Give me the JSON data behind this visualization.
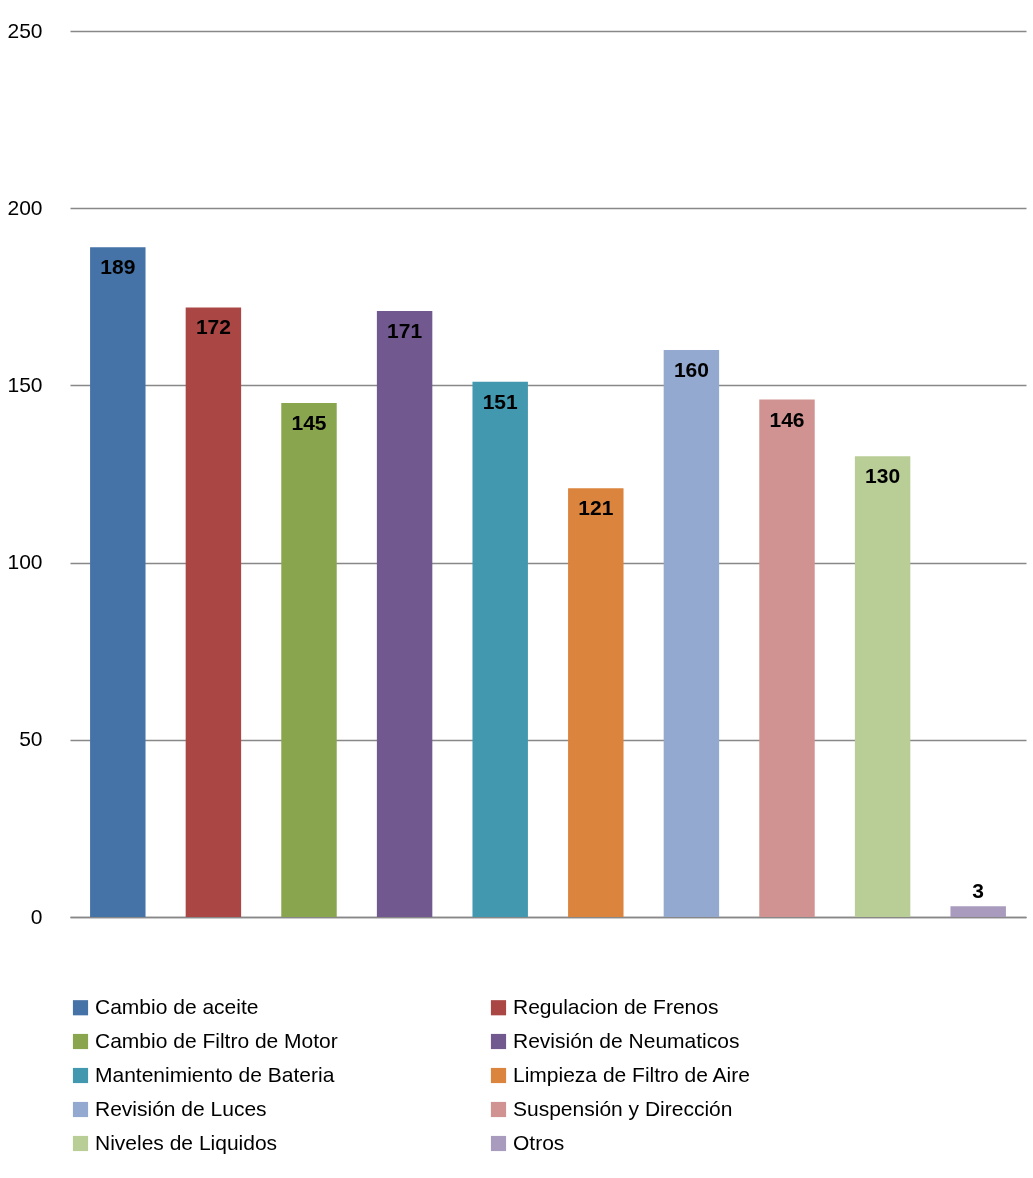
{
  "chart_data": {
    "type": "bar",
    "categories": [
      null,
      null,
      null,
      null,
      null,
      null,
      null,
      null,
      null,
      null
    ],
    "series": [
      {
        "name": "Cambio de aceite",
        "color": "#4572a7",
        "values": [
          189,
          null,
          null,
          null,
          null,
          null,
          null,
          null,
          null,
          null
        ]
      },
      {
        "name": "Regulacion de Frenos",
        "color": "#aa4643",
        "values": [
          null,
          172,
          null,
          null,
          null,
          null,
          null,
          null,
          null,
          null
        ]
      },
      {
        "name": "Cambio de Filtro de Motor",
        "color": "#89a54e",
        "values": [
          null,
          null,
          145,
          null,
          null,
          null,
          null,
          null,
          null,
          null
        ]
      },
      {
        "name": "Revisión de Neumaticos",
        "color": "#71588f",
        "values": [
          null,
          null,
          null,
          171,
          null,
          null,
          null,
          null,
          null,
          null
        ]
      },
      {
        "name": "Mantenimiento de Bateria",
        "color": "#4198af",
        "values": [
          null,
          null,
          null,
          null,
          151,
          null,
          null,
          null,
          null,
          null
        ]
      },
      {
        "name": "Limpieza de Filtro de Aire",
        "color": "#db843d",
        "values": [
          null,
          null,
          null,
          null,
          null,
          121,
          null,
          null,
          null,
          null
        ]
      },
      {
        "name": "Revisión de Luces",
        "color": "#93a9cf",
        "values": [
          null,
          null,
          null,
          null,
          null,
          null,
          160,
          null,
          null,
          null
        ]
      },
      {
        "name": "Suspensión y Dirección",
        "color": "#d19392",
        "values": [
          null,
          null,
          null,
          null,
          null,
          null,
          null,
          146,
          null,
          null
        ]
      },
      {
        "name": "Niveles de Liquidos",
        "color": "#b9cd96",
        "values": [
          null,
          null,
          null,
          null,
          null,
          null,
          null,
          null,
          130,
          null
        ]
      },
      {
        "name": "Otros",
        "color": "#a99bbd",
        "values": [
          null,
          null,
          null,
          null,
          null,
          null,
          null,
          null,
          null,
          3
        ]
      }
    ],
    "ylim": [
      0,
      250
    ],
    "yticks": [
      0,
      50,
      100,
      150,
      200,
      250
    ],
    "grid": "y",
    "legend": "bottom",
    "data_labels": true,
    "tick_labels": "y"
  }
}
